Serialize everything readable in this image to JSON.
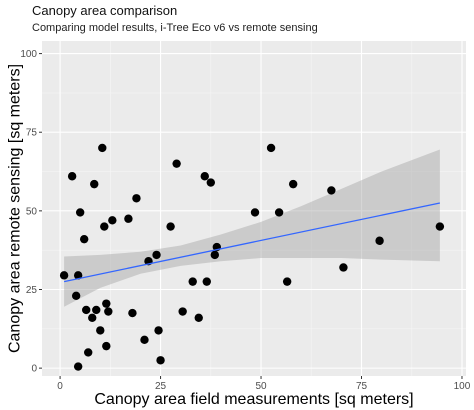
{
  "chart_data": {
    "type": "scatter",
    "title": "Canopy area comparison",
    "subtitle": "Comparing model results, i-Tree Eco v6 vs remote sensing",
    "xlabel": "Canopy area field measurements [sq meters]",
    "ylabel": "Canopy area remote sensing [sq meters]",
    "xlim": [
      -4.5,
      101
    ],
    "ylim": [
      -2.5,
      104
    ],
    "x_ticks": [
      "0",
      "25",
      "50",
      "75",
      "100"
    ],
    "y_ticks": [
      "0",
      "25",
      "50",
      "75",
      "100"
    ],
    "grid": true,
    "legend": "none",
    "points": [
      {
        "x": 1,
        "y": 29.5
      },
      {
        "x": 3,
        "y": 61
      },
      {
        "x": 4,
        "y": 23
      },
      {
        "x": 4.5,
        "y": 29.5
      },
      {
        "x": 5,
        "y": 49.5
      },
      {
        "x": 4.5,
        "y": 0.5
      },
      {
        "x": 6,
        "y": 41
      },
      {
        "x": 6.5,
        "y": 18.5
      },
      {
        "x": 7,
        "y": 5
      },
      {
        "x": 8,
        "y": 16
      },
      {
        "x": 8.5,
        "y": 58.5
      },
      {
        "x": 9,
        "y": 18.5
      },
      {
        "x": 10,
        "y": 12
      },
      {
        "x": 10.5,
        "y": 70
      },
      {
        "x": 11,
        "y": 45
      },
      {
        "x": 11.5,
        "y": 20.5
      },
      {
        "x": 12,
        "y": 18
      },
      {
        "x": 11.5,
        "y": 7
      },
      {
        "x": 13,
        "y": 47
      },
      {
        "x": 17,
        "y": 47.5
      },
      {
        "x": 18,
        "y": 17.5
      },
      {
        "x": 19,
        "y": 54
      },
      {
        "x": 21,
        "y": 9
      },
      {
        "x": 22,
        "y": 34
      },
      {
        "x": 24,
        "y": 36
      },
      {
        "x": 24.5,
        "y": 12
      },
      {
        "x": 25,
        "y": 2.5
      },
      {
        "x": 27.5,
        "y": 45
      },
      {
        "x": 29,
        "y": 65
      },
      {
        "x": 30.5,
        "y": 18
      },
      {
        "x": 33,
        "y": 27.5
      },
      {
        "x": 34.5,
        "y": 16
      },
      {
        "x": 36,
        "y": 61
      },
      {
        "x": 36.5,
        "y": 27.5
      },
      {
        "x": 37.5,
        "y": 59
      },
      {
        "x": 38.5,
        "y": 36
      },
      {
        "x": 39,
        "y": 38.5
      },
      {
        "x": 48.5,
        "y": 49.5
      },
      {
        "x": 52.5,
        "y": 70
      },
      {
        "x": 54.5,
        "y": 49.5
      },
      {
        "x": 56.5,
        "y": 27.5
      },
      {
        "x": 58,
        "y": 58.5
      },
      {
        "x": 67.5,
        "y": 56.5
      },
      {
        "x": 70.5,
        "y": 32
      },
      {
        "x": 79.5,
        "y": 40.5
      },
      {
        "x": 94.5,
        "y": 45
      }
    ],
    "fit_line": {
      "method": "linear",
      "color": "#3366ff",
      "x": [
        1,
        94.5
      ],
      "y": [
        27.5,
        52.5
      ]
    },
    "confidence_band": {
      "x": [
        1,
        10,
        20,
        30,
        40,
        50,
        60,
        70,
        80,
        94.5
      ],
      "lower": [
        19.5,
        25.5,
        30,
        32.5,
        34,
        35,
        35,
        35,
        34.5,
        34
      ],
      "upper": [
        35.5,
        36,
        37,
        39,
        42.5,
        46.5,
        51.5,
        57,
        62.5,
        69.5
      ]
    },
    "colors": {
      "panel": "#ebebeb",
      "grid_major": "#ffffff",
      "grid_minor": "#f5f5f5",
      "band": "#a3a3a3",
      "points": "#000000"
    }
  }
}
